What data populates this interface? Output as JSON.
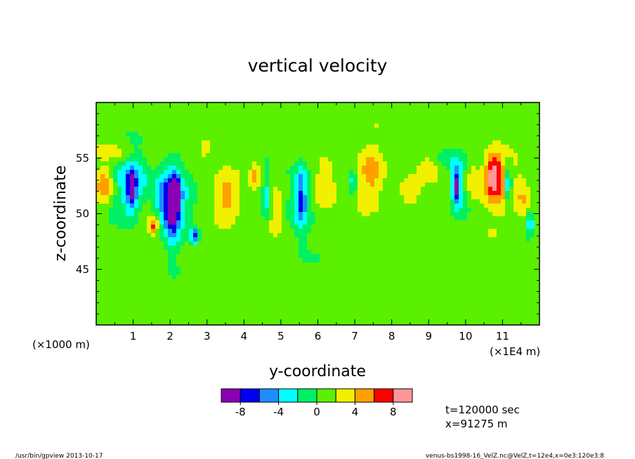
{
  "chart_data": {
    "type": "heatmap",
    "title": "vertical velocity",
    "xlabel": "y-coordinate",
    "ylabel": "z-coordinate",
    "x_unit_left": "(×1000 m)",
    "x_unit_right": "(×1E4 m)",
    "xlim": [
      0,
      12
    ],
    "ylim": [
      40,
      60
    ],
    "x_ticks": [
      "1",
      "2",
      "3",
      "4",
      "5",
      "6",
      "7",
      "8",
      "9",
      "10",
      "11"
    ],
    "y_ticks": [
      "45",
      "50",
      "55"
    ],
    "colorbar": {
      "levels": [
        -10,
        -8,
        -6,
        -4,
        -2,
        0,
        2,
        4,
        6,
        8,
        10
      ],
      "colors": [
        "#8a00b4",
        "#0000f0",
        "#1e8cff",
        "#00ffff",
        "#00f064",
        "#5af000",
        "#f0f000",
        "#ffa000",
        "#ff0000",
        "#ff9696"
      ],
      "tick_labels": [
        "-8",
        "-4",
        "0",
        "4",
        "8"
      ]
    },
    "background_value": 1,
    "features": [
      {
        "y": 0.25,
        "z": 52.6,
        "w": 0.25,
        "h": 3.0,
        "v": 5.5
      },
      {
        "y": 0.55,
        "z": 55.5,
        "w": 0.35,
        "h": 1.5,
        "v": 2.5
      },
      {
        "y": 0.7,
        "z": 52.5,
        "w": 0.4,
        "h": 5.5,
        "v": -3.0
      },
      {
        "y": 0.95,
        "z": 52.0,
        "w": 0.12,
        "h": 3.5,
        "v": -7.0
      },
      {
        "y": 1.1,
        "z": 53.0,
        "w": 0.3,
        "h": 4.5,
        "v": -4.0
      },
      {
        "y": 1.55,
        "z": 49.0,
        "w": 0.15,
        "h": 1.5,
        "v": 6.5
      },
      {
        "y": 1.8,
        "z": 51.5,
        "w": 0.3,
        "h": 5.5,
        "v": -5.0
      },
      {
        "y": 2.05,
        "z": 50.5,
        "w": 0.22,
        "h": 6.5,
        "v": -8.0
      },
      {
        "y": 2.15,
        "z": 51.5,
        "w": 0.1,
        "h": 3.0,
        "v": -10.0
      },
      {
        "y": 2.3,
        "z": 51.5,
        "w": 0.3,
        "h": 6.0,
        "v": -3.0
      },
      {
        "y": 2.65,
        "z": 48.0,
        "w": 0.1,
        "h": 1.5,
        "v": -7.0
      },
      {
        "y": 2.95,
        "z": 56.0,
        "w": 0.15,
        "h": 2.0,
        "v": 3.5
      },
      {
        "y": 3.55,
        "z": 51.5,
        "w": 0.3,
        "h": 4.0,
        "v": 3.5
      },
      {
        "y": 4.3,
        "z": 53.5,
        "w": 0.15,
        "h": 2.5,
        "v": 3.5
      },
      {
        "y": 4.6,
        "z": 51.5,
        "w": 0.1,
        "h": 4.0,
        "v": -4.0
      },
      {
        "y": 4.85,
        "z": 50.5,
        "w": 0.2,
        "h": 4.0,
        "v": 2.5
      },
      {
        "y": 5.55,
        "z": 51.5,
        "w": 0.15,
        "h": 5.5,
        "v": -6.0
      },
      {
        "y": 5.45,
        "z": 51.0,
        "w": 0.4,
        "h": 7.0,
        "v": -2.5
      },
      {
        "y": 6.2,
        "z": 52.5,
        "w": 0.3,
        "h": 4.5,
        "v": 3.5
      },
      {
        "y": 6.95,
        "z": 53.0,
        "w": 0.1,
        "h": 2.5,
        "v": -4.0
      },
      {
        "y": 7.45,
        "z": 53.5,
        "w": 0.35,
        "h": 5.0,
        "v": 3.5
      },
      {
        "y": 8.45,
        "z": 52.0,
        "w": 0.3,
        "h": 2.5,
        "v": 3.0
      },
      {
        "y": 9.0,
        "z": 54.5,
        "w": 0.3,
        "h": 2.0,
        "v": 3.0
      },
      {
        "y": 9.4,
        "z": 55.0,
        "w": 0.5,
        "h": 2.0,
        "v": -2.5
      },
      {
        "y": 9.75,
        "z": 52.5,
        "w": 0.1,
        "h": 3.0,
        "v": -8.0
      },
      {
        "y": 9.85,
        "z": 52.5,
        "w": 0.25,
        "h": 5.0,
        "v": -3.5
      },
      {
        "y": 10.15,
        "z": 53.0,
        "w": 0.25,
        "h": 3.5,
        "v": 3.5
      },
      {
        "y": 10.75,
        "z": 53.5,
        "w": 0.22,
        "h": 3.5,
        "v": 6.5
      },
      {
        "y": 10.9,
        "z": 52.5,
        "w": 0.4,
        "h": 5.5,
        "v": 3.0
      },
      {
        "y": 11.15,
        "z": 52.5,
        "w": 0.1,
        "h": 3.5,
        "v": -6.5
      },
      {
        "y": 11.55,
        "z": 51.5,
        "w": 0.2,
        "h": 4.5,
        "v": 3.0
      },
      {
        "y": 11.75,
        "z": 49.0,
        "w": 0.1,
        "h": 2.5,
        "v": -4.0
      },
      {
        "y": 3.2,
        "z": 57.0,
        "w": 0.3,
        "h": 1.5,
        "v": -1.0
      },
      {
        "y": 6.1,
        "z": 47.0,
        "w": 0.5,
        "h": 2.0,
        "v": -0.5
      }
    ]
  },
  "info": {
    "time": "t=120000 sec",
    "xpos": "x=91275 m"
  },
  "footer": {
    "left": "/usr/bin/gpview   2013-10-17",
    "right": "venus-bs1998-16_VelZ.nc@VelZ,t=12e4,x=0e3:120e3:8"
  }
}
